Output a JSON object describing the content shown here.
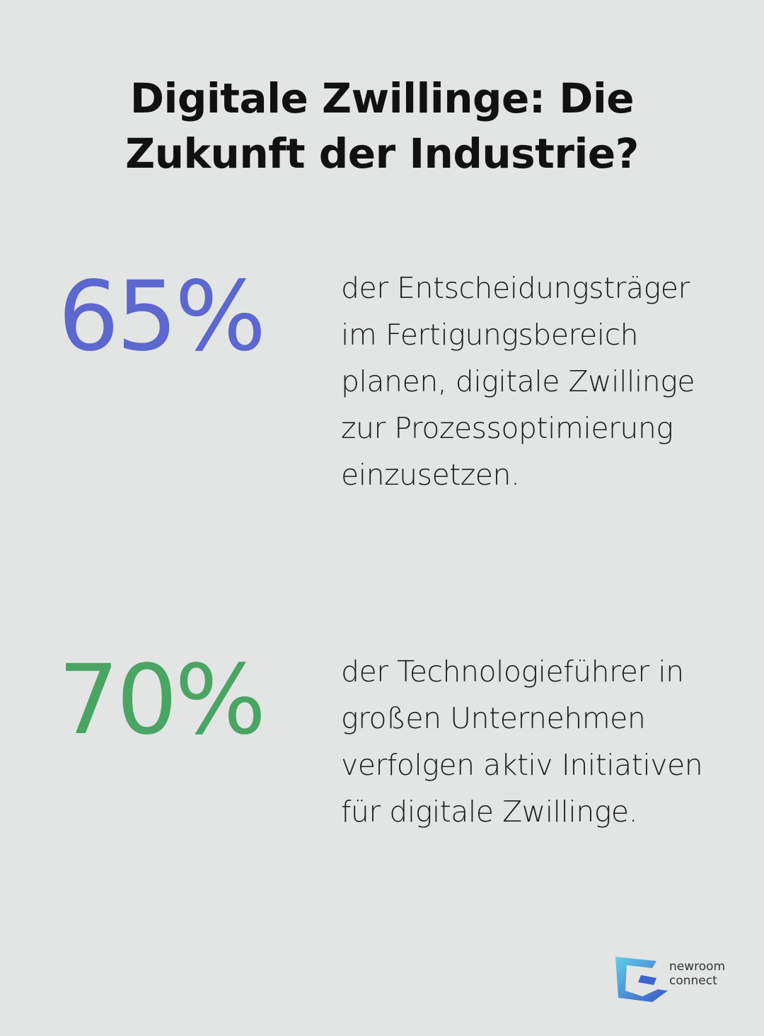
{
  "title": "Digitale Zwillinge: Die Zukunft der Industrie?",
  "stats": [
    {
      "value": "65%",
      "color": "#5c67cf",
      "text": "der Entscheidungsträger im Fertigungsbereich planen, digitale Zwillinge zur Prozessoptimierung einzusetzen."
    },
    {
      "value": "70%",
      "color": "#4aa565",
      "text": "der Technologieführer in großen Unternehmen verfolgen aktiv Initiativen für digitale Zwillinge."
    }
  ],
  "logo": {
    "line1": "newroom",
    "line2": "connect",
    "icon": "newroom-connect-logo-icon"
  }
}
